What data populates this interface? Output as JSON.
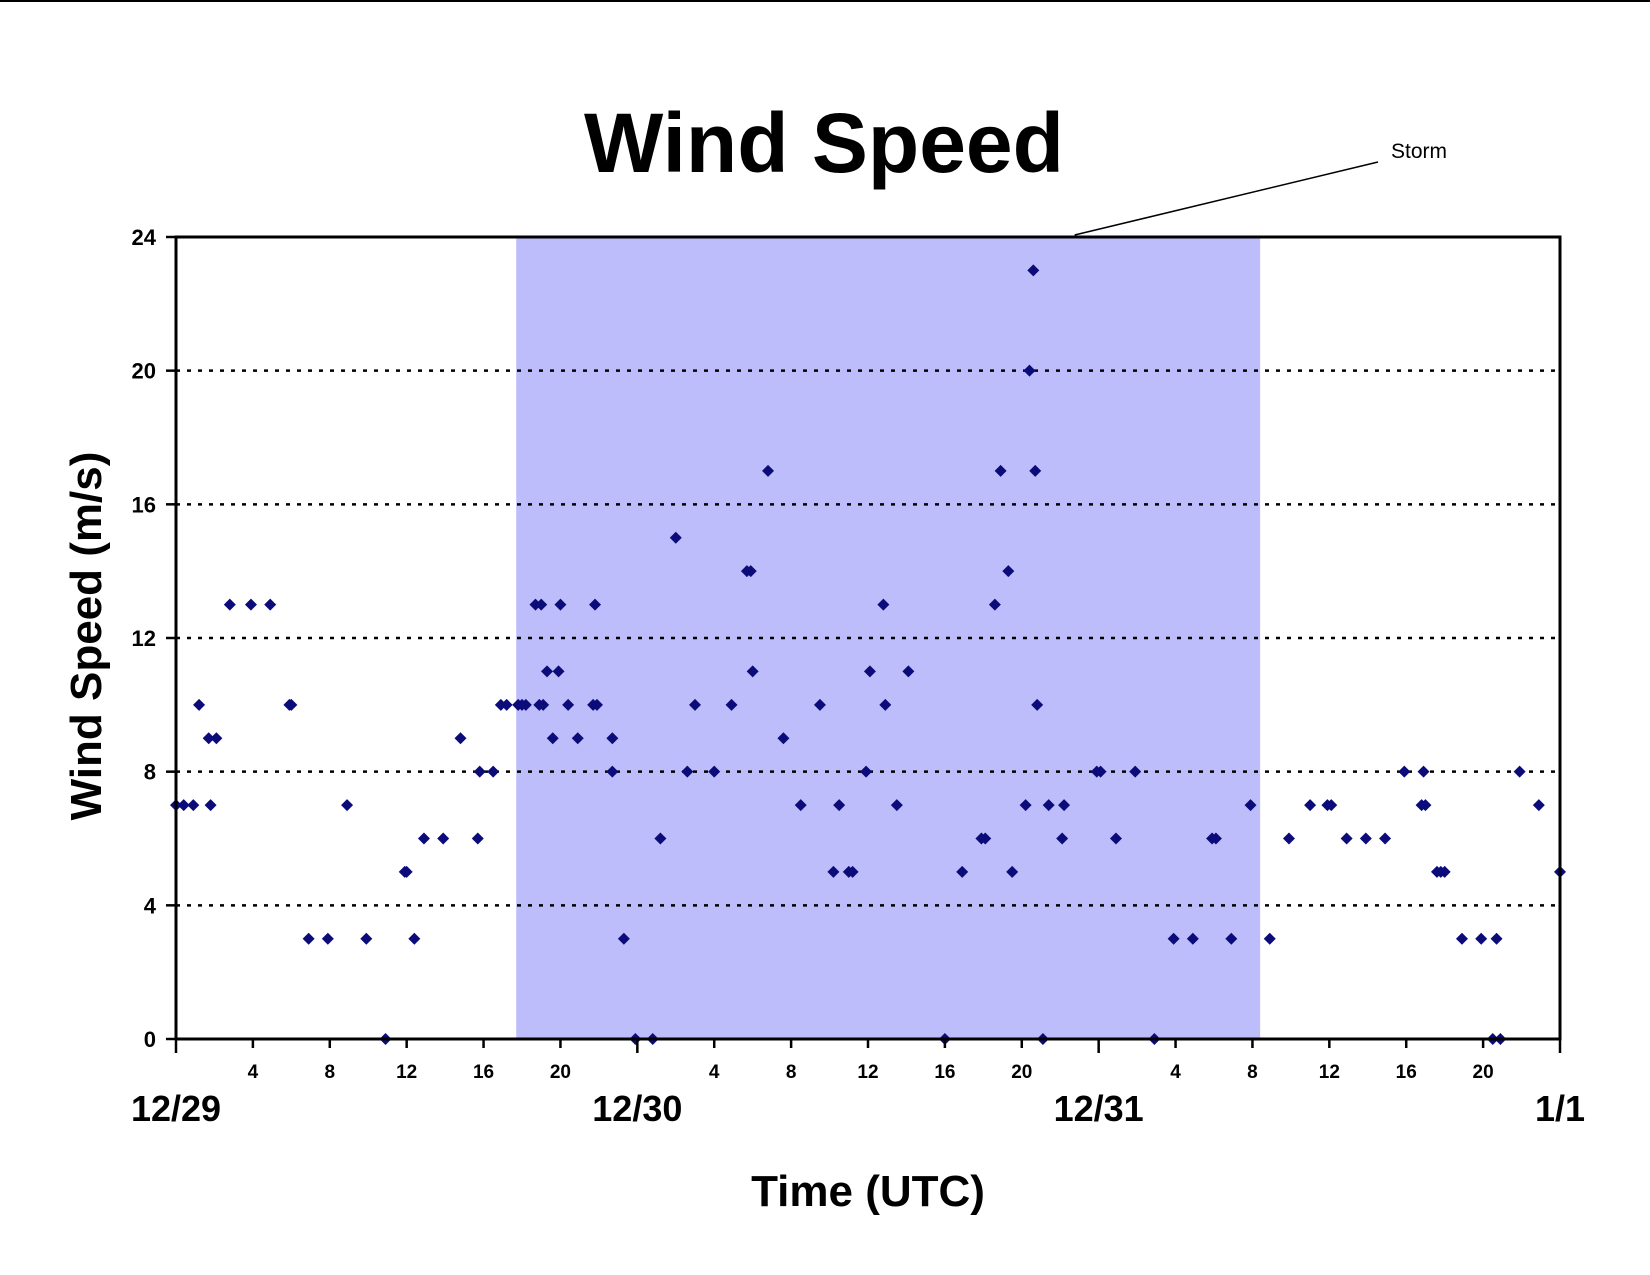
{
  "chart_data": {
    "type": "scatter",
    "title": "Wind Speed",
    "xlabel": "Time (UTC)",
    "ylabel": "Wind Speed (m/s)",
    "x_unit": "hours from 12/29 00 UTC",
    "xlim": [
      0,
      72
    ],
    "ylim": [
      0,
      24
    ],
    "yticks": [
      0,
      4,
      8,
      12,
      16,
      20,
      24
    ],
    "grid": "horizontal dotted",
    "marker_color": "#0b0b7a",
    "storm_color": "#bdbdfb",
    "day_labels": [
      {
        "label": "12/29",
        "hour": 0
      },
      {
        "label": "12/30",
        "hour": 24
      },
      {
        "label": "12/31",
        "hour": 48
      },
      {
        "label": "1/1",
        "hour": 72
      }
    ],
    "hour_ticks": [
      {
        "label": "4",
        "hour": 4
      },
      {
        "label": "8",
        "hour": 8
      },
      {
        "label": "12",
        "hour": 12
      },
      {
        "label": "16",
        "hour": 16
      },
      {
        "label": "20",
        "hour": 20
      },
      {
        "label": "4",
        "hour": 28
      },
      {
        "label": "8",
        "hour": 32
      },
      {
        "label": "12",
        "hour": 36
      },
      {
        "label": "16",
        "hour": 40
      },
      {
        "label": "20",
        "hour": 44
      },
      {
        "label": "4",
        "hour": 52
      },
      {
        "label": "8",
        "hour": 56
      },
      {
        "label": "12",
        "hour": 60
      },
      {
        "label": "16",
        "hour": 64
      },
      {
        "label": "20",
        "hour": 68
      }
    ],
    "storm": {
      "label": "Storm",
      "start": 17.7,
      "end": 56.4
    },
    "points": [
      [
        0.0,
        7
      ],
      [
        0.4,
        7
      ],
      [
        0.9,
        7
      ],
      [
        1.2,
        10
      ],
      [
        1.7,
        9
      ],
      [
        1.8,
        7
      ],
      [
        2.1,
        9
      ],
      [
        2.8,
        13
      ],
      [
        3.9,
        13
      ],
      [
        4.9,
        13
      ],
      [
        5.9,
        10
      ],
      [
        6.0,
        10
      ],
      [
        6.9,
        3
      ],
      [
        7.9,
        3
      ],
      [
        8.9,
        7
      ],
      [
        9.9,
        3
      ],
      [
        10.9,
        0
      ],
      [
        11.9,
        5
      ],
      [
        12.0,
        5
      ],
      [
        12.4,
        3
      ],
      [
        12.9,
        6
      ],
      [
        13.9,
        6
      ],
      [
        14.8,
        9
      ],
      [
        15.7,
        6
      ],
      [
        15.8,
        8
      ],
      [
        16.5,
        8
      ],
      [
        16.9,
        10
      ],
      [
        17.2,
        10
      ],
      [
        17.8,
        10
      ],
      [
        18.0,
        10
      ],
      [
        18.2,
        10
      ],
      [
        18.7,
        13
      ],
      [
        19.0,
        13
      ],
      [
        18.9,
        10
      ],
      [
        19.1,
        10
      ],
      [
        19.3,
        11
      ],
      [
        19.6,
        9
      ],
      [
        19.9,
        11
      ],
      [
        20.0,
        13
      ],
      [
        20.4,
        10
      ],
      [
        20.9,
        9
      ],
      [
        21.7,
        10
      ],
      [
        21.8,
        13
      ],
      [
        21.9,
        10
      ],
      [
        22.7,
        9
      ],
      [
        22.7,
        8
      ],
      [
        23.3,
        3
      ],
      [
        23.9,
        0
      ],
      [
        24.8,
        0
      ],
      [
        25.2,
        6
      ],
      [
        26.0,
        15
      ],
      [
        26.6,
        8
      ],
      [
        27.0,
        10
      ],
      [
        28.0,
        8
      ],
      [
        28.9,
        10
      ],
      [
        29.7,
        14
      ],
      [
        29.9,
        14
      ],
      [
        30.0,
        11
      ],
      [
        30.8,
        17
      ],
      [
        31.6,
        9
      ],
      [
        32.5,
        7
      ],
      [
        33.5,
        10
      ],
      [
        34.2,
        5
      ],
      [
        34.5,
        7
      ],
      [
        35.0,
        5
      ],
      [
        35.2,
        5
      ],
      [
        35.9,
        8
      ],
      [
        36.1,
        11
      ],
      [
        36.8,
        13
      ],
      [
        36.9,
        10
      ],
      [
        37.5,
        7
      ],
      [
        38.1,
        11
      ],
      [
        40.0,
        0
      ],
      [
        40.9,
        5
      ],
      [
        41.9,
        6
      ],
      [
        42.1,
        6
      ],
      [
        42.6,
        13
      ],
      [
        42.9,
        17
      ],
      [
        43.3,
        14
      ],
      [
        43.5,
        5
      ],
      [
        44.2,
        7
      ],
      [
        44.4,
        20
      ],
      [
        44.6,
        23
      ],
      [
        44.7,
        17
      ],
      [
        44.8,
        10
      ],
      [
        45.1,
        0
      ],
      [
        45.4,
        7
      ],
      [
        46.1,
        6
      ],
      [
        46.2,
        7
      ],
      [
        47.9,
        8
      ],
      [
        48.1,
        8
      ],
      [
        48.9,
        6
      ],
      [
        49.9,
        8
      ],
      [
        50.9,
        0
      ],
      [
        51.9,
        3
      ],
      [
        52.9,
        3
      ],
      [
        53.9,
        6
      ],
      [
        54.1,
        6
      ],
      [
        54.9,
        3
      ],
      [
        55.9,
        7
      ],
      [
        56.9,
        3
      ],
      [
        57.9,
        6
      ],
      [
        59.0,
        7
      ],
      [
        59.9,
        7
      ],
      [
        60.1,
        7
      ],
      [
        60.9,
        6
      ],
      [
        61.9,
        6
      ],
      [
        62.9,
        6
      ],
      [
        63.9,
        8
      ],
      [
        64.8,
        7
      ],
      [
        64.9,
        8
      ],
      [
        65.0,
        7
      ],
      [
        65.6,
        5
      ],
      [
        65.8,
        5
      ],
      [
        66.0,
        5
      ],
      [
        66.9,
        3
      ],
      [
        67.9,
        3
      ],
      [
        68.5,
        0
      ],
      [
        68.7,
        3
      ],
      [
        68.9,
        0
      ],
      [
        69.9,
        8
      ],
      [
        70.9,
        7
      ],
      [
        72.0,
        5
      ]
    ]
  }
}
